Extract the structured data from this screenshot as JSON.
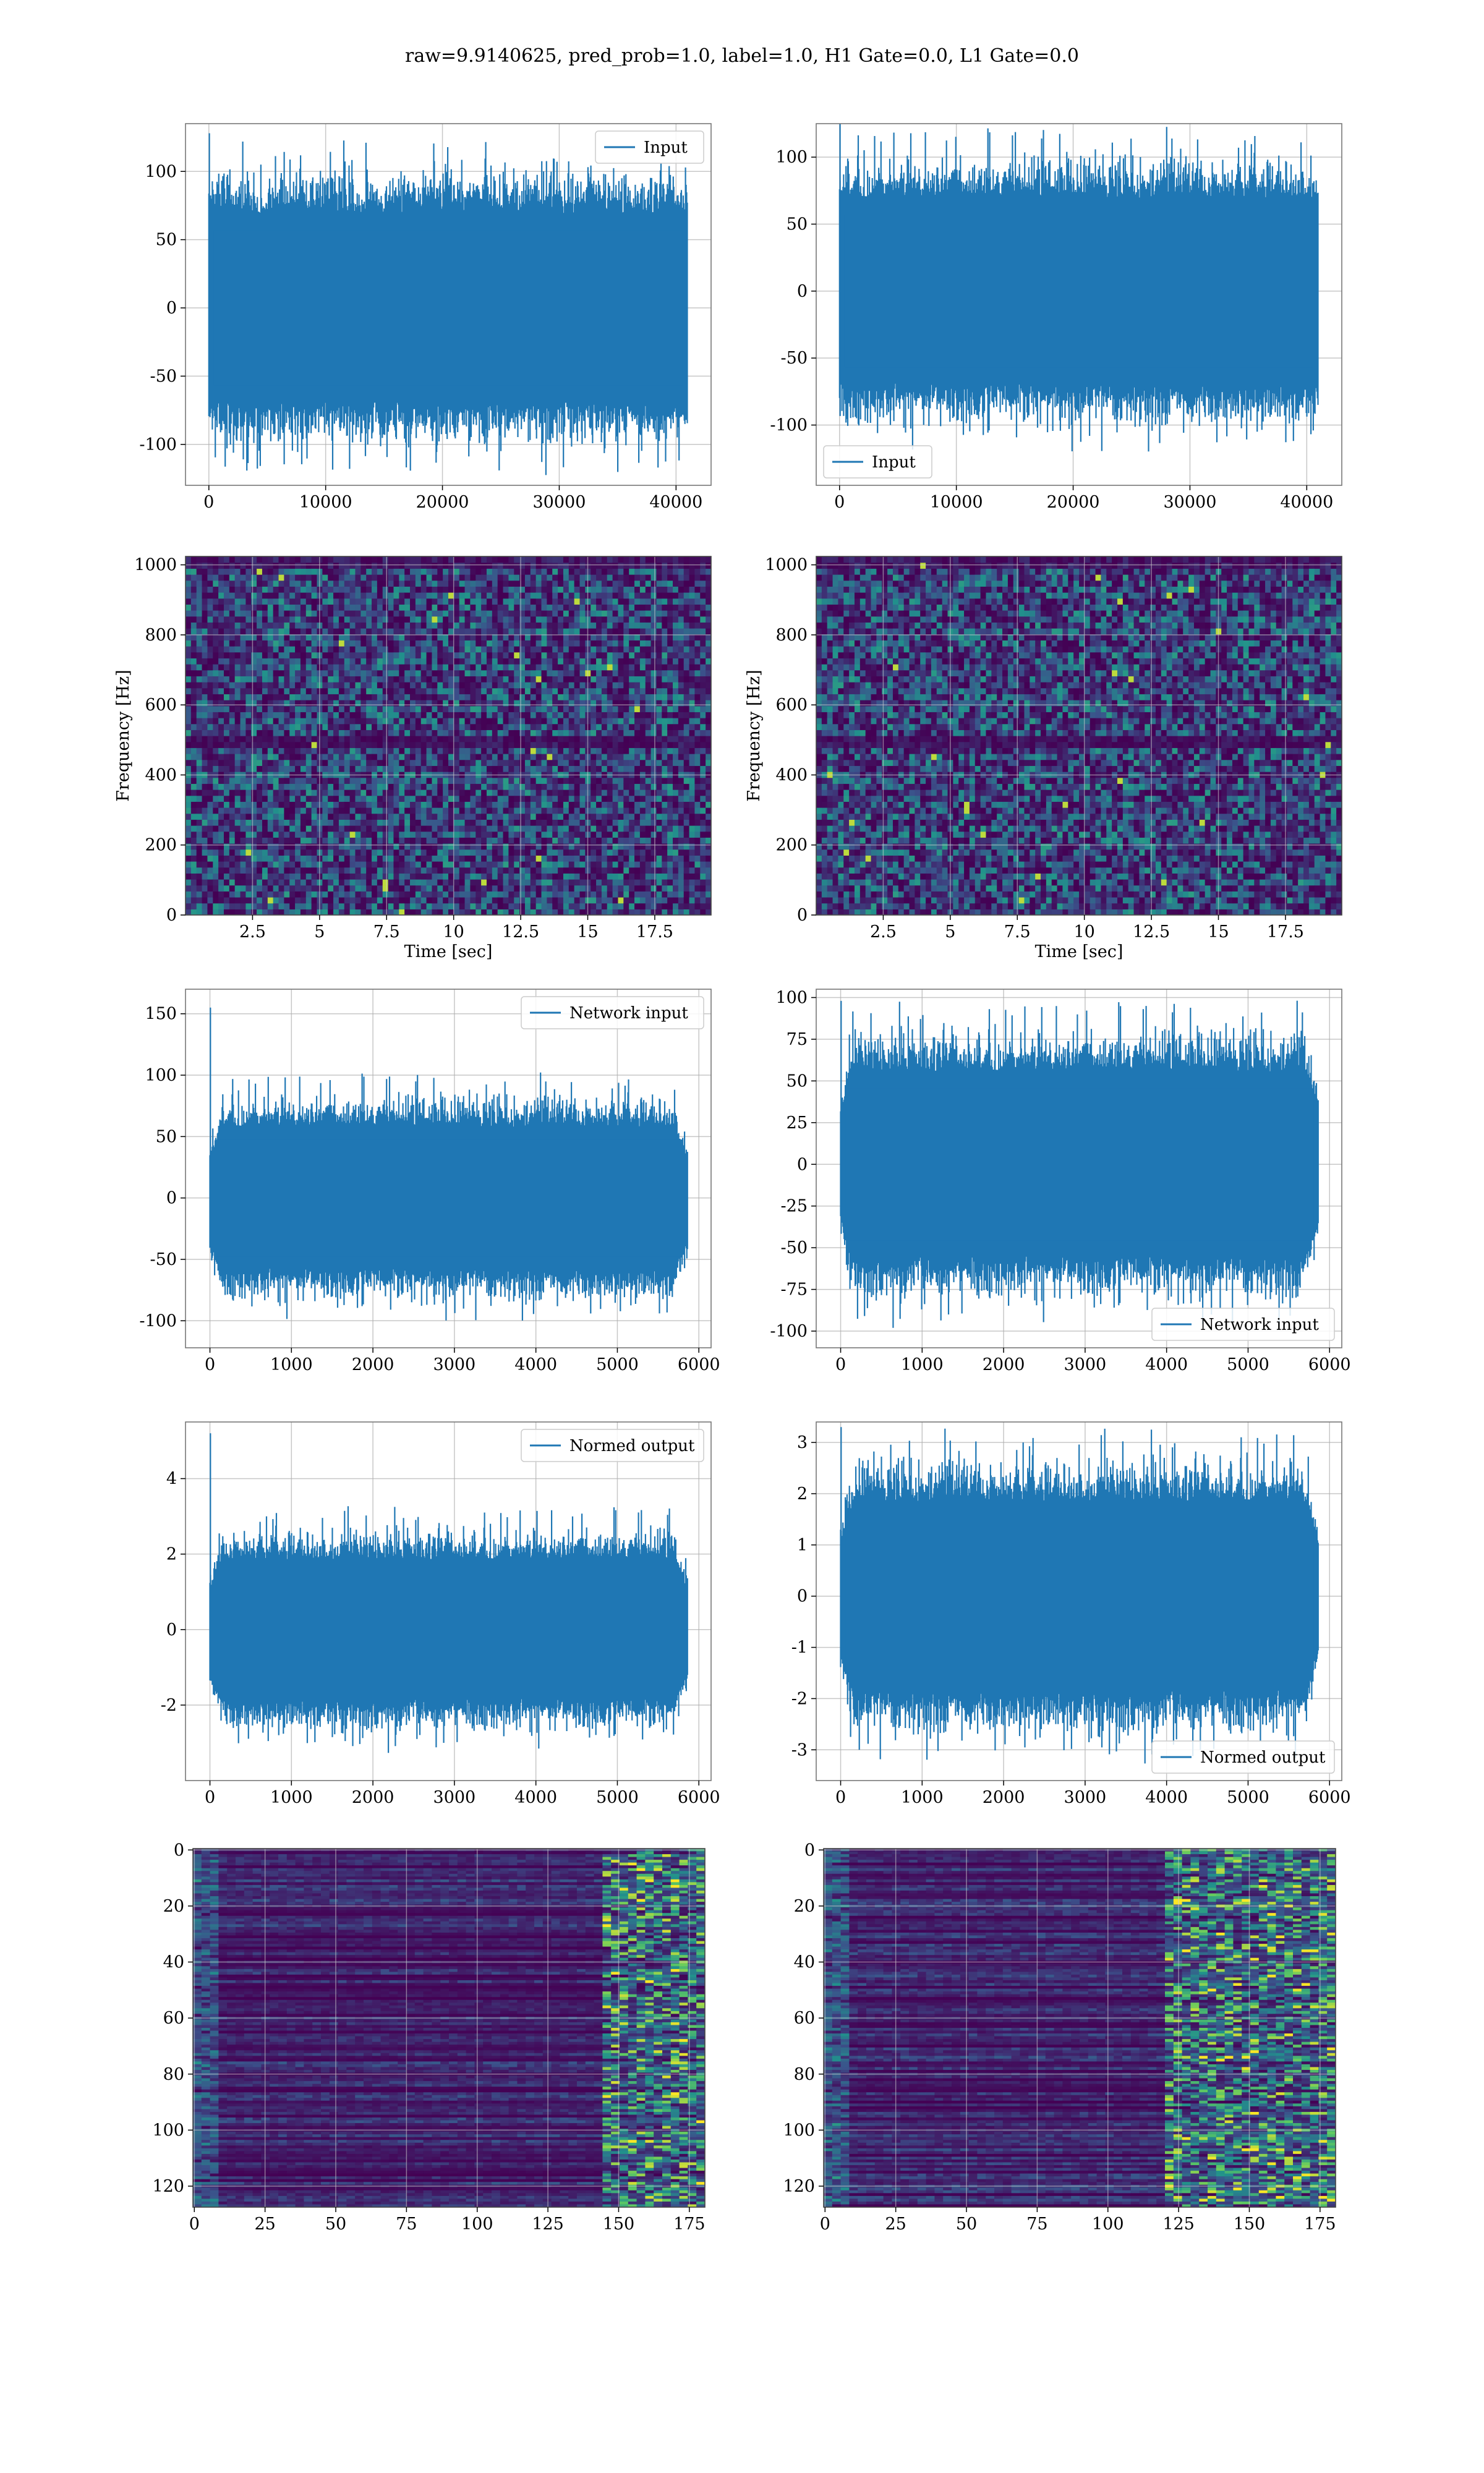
{
  "title": "raw=9.9140625, pred_prob=1.0, label=1.0, H1 Gate=0.0, L1 Gate=0.0",
  "colors": {
    "series": "#1f77b4",
    "grid": "#b0b0b0"
  },
  "chart_data": [
    {
      "id": "p1",
      "type": "line",
      "row": 0,
      "col": 0,
      "xlim": [
        -2000,
        43000
      ],
      "ylim": [
        -130,
        135
      ],
      "xticks": [
        0,
        10000,
        20000,
        30000,
        40000
      ],
      "yticks": [
        -100,
        -50,
        0,
        50,
        100
      ],
      "x_range": [
        0,
        40960
      ],
      "amplitude": 60,
      "spike": 128,
      "envelope": false,
      "series": [
        {
          "name": "Input"
        }
      ],
      "legend": "top-right",
      "grid": true,
      "xlabel": "",
      "ylabel": ""
    },
    {
      "id": "p2",
      "type": "line",
      "row": 0,
      "col": 1,
      "xlim": [
        -2000,
        43000
      ],
      "ylim": [
        -145,
        125
      ],
      "xticks": [
        0,
        10000,
        20000,
        30000,
        40000
      ],
      "yticks": [
        -100,
        -50,
        0,
        50,
        100
      ],
      "x_range": [
        0,
        40960
      ],
      "amplitude": 60,
      "spike": 125,
      "envelope": false,
      "series": [
        {
          "name": "Input"
        }
      ],
      "legend": "bottom-left",
      "grid": true,
      "xlabel": "",
      "ylabel": ""
    },
    {
      "id": "p3",
      "type": "heatmap",
      "row": 1,
      "col": 0,
      "xlim": [
        0,
        19.6
      ],
      "ylim": [
        0,
        1024
      ],
      "xticks": [
        2.5,
        5.0,
        7.5,
        10.0,
        12.5,
        15.0,
        17.5
      ],
      "yticks": [
        0,
        200,
        400,
        600,
        800,
        1000
      ],
      "xlabel": "Time [sec]",
      "ylabel": "Frequency [Hz]",
      "grid": true,
      "band": 500
    },
    {
      "id": "p4",
      "type": "heatmap",
      "row": 1,
      "col": 1,
      "xlim": [
        0,
        19.6
      ],
      "ylim": [
        0,
        1024
      ],
      "xticks": [
        2.5,
        5.0,
        7.5,
        10.0,
        12.5,
        15.0,
        17.5
      ],
      "yticks": [
        0,
        200,
        400,
        600,
        800,
        1000
      ],
      "xlabel": "Time [sec]",
      "ylabel": "Frequency [Hz]",
      "grid": true,
      "band": 500
    },
    {
      "id": "p5",
      "type": "line",
      "row": 2,
      "col": 0,
      "xlim": [
        -300,
        6150
      ],
      "ylim": [
        -122,
        170
      ],
      "xticks": [
        0,
        1000,
        2000,
        3000,
        4000,
        5000,
        6000
      ],
      "yticks": [
        -100,
        -50,
        0,
        50,
        100,
        150
      ],
      "x_range": [
        0,
        5860
      ],
      "amplitude": 50,
      "spike": 155,
      "envelope": true,
      "series": [
        {
          "name": "Network input"
        }
      ],
      "legend": "top-right",
      "grid": true,
      "xlabel": "",
      "ylabel": ""
    },
    {
      "id": "p6",
      "type": "line",
      "row": 2,
      "col": 1,
      "xlim": [
        -300,
        6150
      ],
      "ylim": [
        -110,
        105
      ],
      "xticks": [
        0,
        1000,
        2000,
        3000,
        4000,
        5000,
        6000
      ],
      "yticks": [
        -100,
        -75,
        -50,
        -25,
        0,
        25,
        50,
        75,
        100
      ],
      "x_range": [
        0,
        5860
      ],
      "amplitude": 48,
      "spike": 98,
      "envelope": true,
      "series": [
        {
          "name": "Network input"
        }
      ],
      "legend": "bottom-right",
      "grid": true,
      "xlabel": "",
      "ylabel": ""
    },
    {
      "id": "p7",
      "type": "line",
      "row": 3,
      "col": 0,
      "xlim": [
        -300,
        6150
      ],
      "ylim": [
        -4.0,
        5.5
      ],
      "xticks": [
        0,
        1000,
        2000,
        3000,
        4000,
        5000,
        6000
      ],
      "yticks": [
        -2,
        0,
        2,
        4
      ],
      "x_range": [
        0,
        5860
      ],
      "amplitude": 1.6,
      "spike": 5.2,
      "envelope": true,
      "series": [
        {
          "name": "Normed output"
        }
      ],
      "legend": "top-right",
      "grid": true,
      "xlabel": "",
      "ylabel": ""
    },
    {
      "id": "p8",
      "type": "line",
      "row": 3,
      "col": 1,
      "xlim": [
        -300,
        6150
      ],
      "ylim": [
        -3.6,
        3.4
      ],
      "xticks": [
        0,
        1000,
        2000,
        3000,
        4000,
        5000,
        6000
      ],
      "yticks": [
        -3,
        -2,
        -1,
        0,
        1,
        2,
        3
      ],
      "x_range": [
        0,
        5860
      ],
      "amplitude": 1.6,
      "spike": 3.3,
      "envelope": true,
      "series": [
        {
          "name": "Normed output"
        }
      ],
      "legend": "bottom-right",
      "grid": true,
      "xlabel": "",
      "ylabel": ""
    },
    {
      "id": "p9",
      "type": "heatmap",
      "row": 4,
      "col": 0,
      "xlim": [
        -0.5,
        180.5
      ],
      "ylim": [
        127.5,
        -0.5
      ],
      "inverted": true,
      "xticks": [
        0,
        25,
        50,
        75,
        100,
        125,
        150,
        175
      ],
      "yticks": [
        0,
        20,
        40,
        60,
        80,
        100,
        120
      ],
      "xlabel": "",
      "ylabel": "",
      "grid": true,
      "hot_from": 145
    },
    {
      "id": "p10",
      "type": "heatmap",
      "row": 4,
      "col": 1,
      "xlim": [
        -0.5,
        180.5
      ],
      "ylim": [
        127.5,
        -0.5
      ],
      "inverted": true,
      "xticks": [
        0,
        25,
        50,
        75,
        100,
        125,
        150,
        175
      ],
      "yticks": [
        0,
        20,
        40,
        60,
        80,
        100,
        120
      ],
      "xlabel": "",
      "ylabel": "",
      "grid": true,
      "hot_from": 120
    }
  ]
}
